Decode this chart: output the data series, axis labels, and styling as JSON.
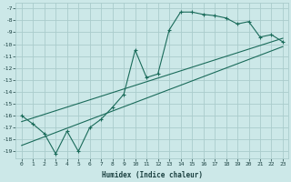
{
  "xlabel": "Humidex (Indice chaleur)",
  "background_color": "#cce8e8",
  "grid_color": "#aacccc",
  "line_color": "#1a6b5a",
  "x_ticks": [
    0,
    1,
    2,
    3,
    4,
    5,
    6,
    7,
    8,
    9,
    10,
    11,
    12,
    13,
    14,
    15,
    16,
    17,
    18,
    19,
    20,
    21,
    22,
    23
  ],
  "y_ticks": [
    -7,
    -8,
    -9,
    -10,
    -11,
    -12,
    -13,
    -14,
    -15,
    -16,
    -17,
    -18,
    -19
  ],
  "ylim": [
    -19.6,
    -6.5
  ],
  "xlim": [
    -0.5,
    23.5
  ],
  "main_x": [
    0,
    1,
    2,
    3,
    4,
    5,
    6,
    7,
    8,
    9,
    10,
    11,
    12,
    13,
    14,
    15,
    16,
    17,
    18,
    19,
    20,
    21,
    22,
    23
  ],
  "main_y": [
    -16.0,
    -16.7,
    -17.5,
    -19.2,
    -17.3,
    -19.0,
    -17.0,
    -16.3,
    -15.3,
    -14.2,
    -10.5,
    -12.8,
    -12.5,
    -8.8,
    -7.3,
    -7.3,
    -7.5,
    -7.6,
    -7.8,
    -8.3,
    -8.1,
    -9.4,
    -9.2,
    -9.8
  ],
  "line1_x": [
    0,
    23
  ],
  "line1_y": [
    -16.5,
    -9.5
  ],
  "line2_x": [
    0,
    23
  ],
  "line2_y": [
    -18.5,
    -10.2
  ]
}
